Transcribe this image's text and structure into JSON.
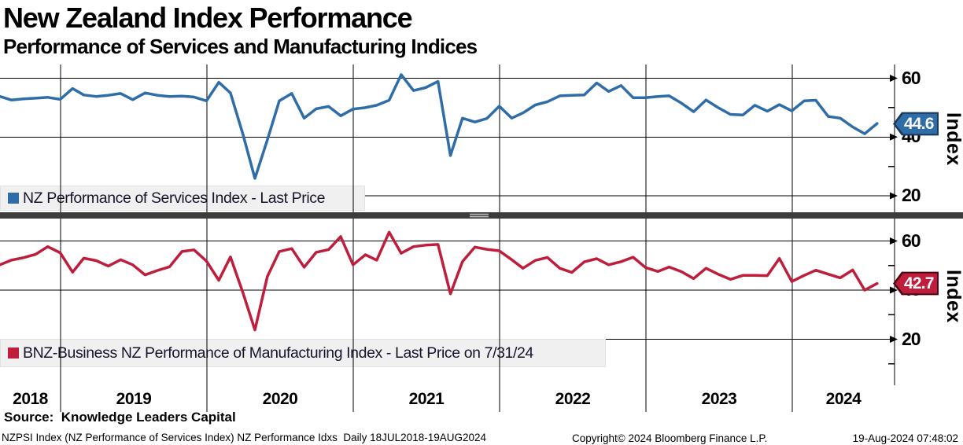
{
  "header": {
    "title": "New Zealand Index Performance",
    "subtitle": "Performance of Services and Manufacturing Indices"
  },
  "chart_data": {
    "type": "line",
    "x_start_month": "2018-07",
    "x_year_labels": [
      "2018",
      "2019",
      "2020",
      "2021",
      "2022",
      "2023",
      "2024"
    ],
    "x_range": "18JUL2018-19AUG2024",
    "grid": "on",
    "panels": [
      {
        "name": "services",
        "legend": "NZ Performance of Services Index - Last Price",
        "color": "#2e6da8",
        "ylabel": "Index",
        "yticks": [
          60,
          40,
          20
        ],
        "yticks_minor": [
          50,
          30
        ],
        "ylim": [
          14,
          65
        ],
        "last_price": "44.6",
        "values": [
          53.8,
          52.6,
          53.0,
          53.2,
          53.5,
          52.8,
          56.5,
          54.3,
          53.8,
          54.2,
          54.8,
          52.7,
          55.0,
          54.2,
          53.8,
          53.9,
          53.6,
          52.3,
          58.6,
          55.0,
          41.0,
          25.9,
          39.0,
          52.3,
          54.8,
          46.4,
          49.6,
          50.4,
          47.2,
          49.5,
          50.0,
          50.8,
          52.5,
          61.2,
          55.8,
          56.8,
          58.9,
          33.7,
          46.4,
          45.1,
          46.3,
          50.5,
          46.4,
          48.2,
          50.9,
          52.0,
          54.0,
          54.2,
          54.3,
          58.4,
          55.5,
          57.5,
          53.4,
          53.4,
          53.8,
          54.0,
          51.5,
          48.6,
          52.6,
          50.0,
          47.7,
          47.5,
          50.8,
          48.8,
          51.0,
          48.9,
          52.3,
          52.5,
          47.0,
          46.4,
          43.4,
          41.1,
          44.6
        ]
      },
      {
        "name": "manufacturing",
        "legend": "BNZ-Business NZ Performance of Manufacturing Index - Last Price on 7/31/24",
        "color": "#be1e3c",
        "ylabel": "Index",
        "yticks": [
          60,
          40,
          20
        ],
        "yticks_minor": [
          50,
          30,
          10
        ],
        "ylim": [
          2,
          68
        ],
        "last_price": "42.7",
        "values": [
          50.3,
          52.2,
          53.2,
          54.6,
          57.7,
          55.2,
          47.3,
          53.0,
          52.0,
          49.8,
          52.4,
          50.3,
          46.2,
          48.0,
          49.5,
          55.7,
          56.4,
          51.8,
          44.0,
          53.5,
          39.0,
          23.8,
          45.5,
          55.7,
          56.9,
          49.3,
          55.4,
          56.5,
          61.8,
          50.3,
          54.4,
          52.2,
          63.6,
          55.0,
          57.7,
          58.3,
          58.6,
          38.5,
          51.6,
          57.5,
          56.6,
          56.0,
          52.4,
          48.9,
          52.1,
          53.3,
          48.9,
          47.2,
          51.5,
          52.8,
          50.3,
          51.6,
          53.4,
          49.2,
          47.6,
          49.4,
          47.5,
          44.7,
          48.9,
          46.5,
          44.4,
          46.0,
          46.0,
          45.9,
          52.9,
          43.5,
          46.0,
          48.1,
          46.5,
          45.0,
          48.2,
          40.0,
          42.7
        ]
      }
    ]
  },
  "footer": {
    "source": "Source:  Knowledge Leaders Capital",
    "meta": "NZPSI Index (NZ Performance of Services Index) NZ Performance Idxs  Daily 18JUL2018-19AUG2024",
    "copyright": "Copyright© 2024 Bloomberg Finance L.P.",
    "timestamp": "19-Aug-2024 07:48:02"
  }
}
